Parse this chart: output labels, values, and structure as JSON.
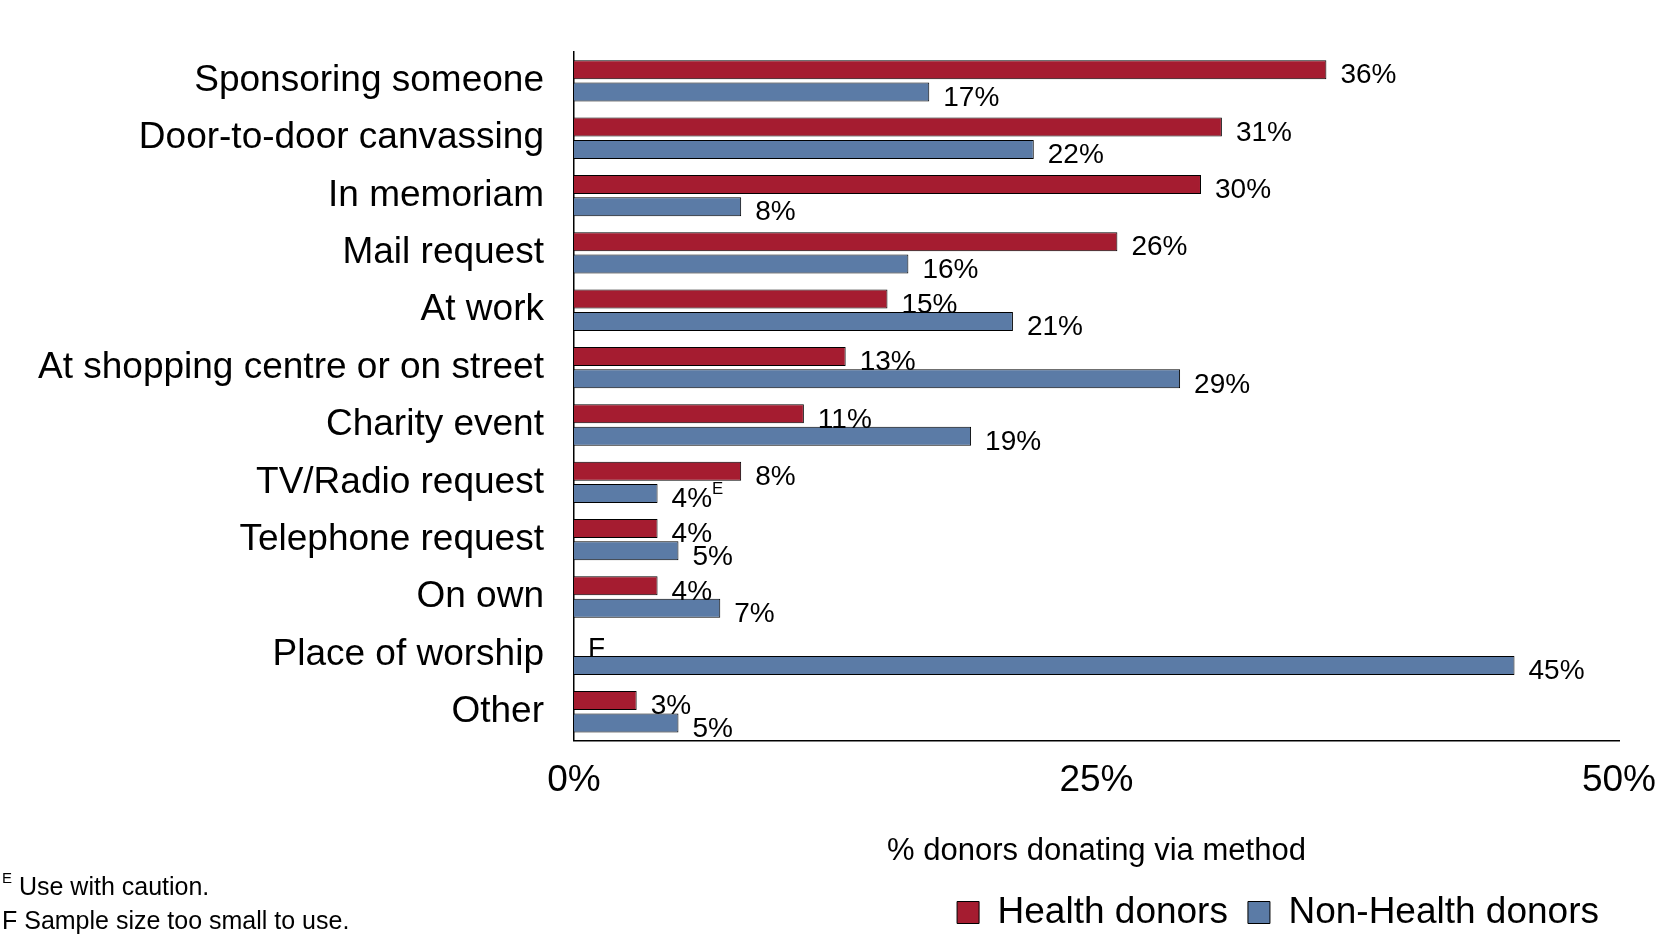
{
  "chart_data": {
    "type": "bar",
    "orientation": "horizontal",
    "categories": [
      "Sponsoring someone",
      "Door-to-door canvassing",
      "In memoriam",
      "Mail request",
      "At work",
      "At shopping centre or on street",
      "Charity event",
      "TV/Radio request",
      "Telephone request",
      "On own",
      "Place of worship",
      "Other"
    ],
    "series": [
      {
        "name": "Health donors",
        "color": "#a51c30",
        "values": [
          36,
          31,
          30,
          26,
          15,
          13,
          11,
          8,
          4,
          4,
          null,
          3
        ],
        "value_labels": [
          "36%",
          "31%",
          "30%",
          "26%",
          "15%",
          "13%",
          "11%",
          "8%",
          "4%",
          "4%",
          "F",
          "3%"
        ]
      },
      {
        "name": "Non-Health donors",
        "color": "#5b7ba6",
        "values": [
          17,
          22,
          8,
          16,
          21,
          29,
          19,
          4,
          5,
          7,
          45,
          5
        ],
        "value_labels": [
          "17%",
          "22%",
          "8%",
          "16%",
          "21%",
          "29%",
          "19%",
          "4%$^{E}$",
          "5%",
          "7%",
          "45%",
          "5%"
        ]
      }
    ],
    "xlabel": "% donors donating via method",
    "xlim": [
      0,
      50
    ],
    "xticks": [
      {
        "value": 0,
        "label": "0%"
      },
      {
        "value": 25,
        "label": "25%"
      },
      {
        "value": 50,
        "label": "50%"
      }
    ],
    "grid": false,
    "legend": "bottom right",
    "annotations": [
      "$^{E}$ Use with caution.",
      "F Sample size too small to use."
    ]
  }
}
